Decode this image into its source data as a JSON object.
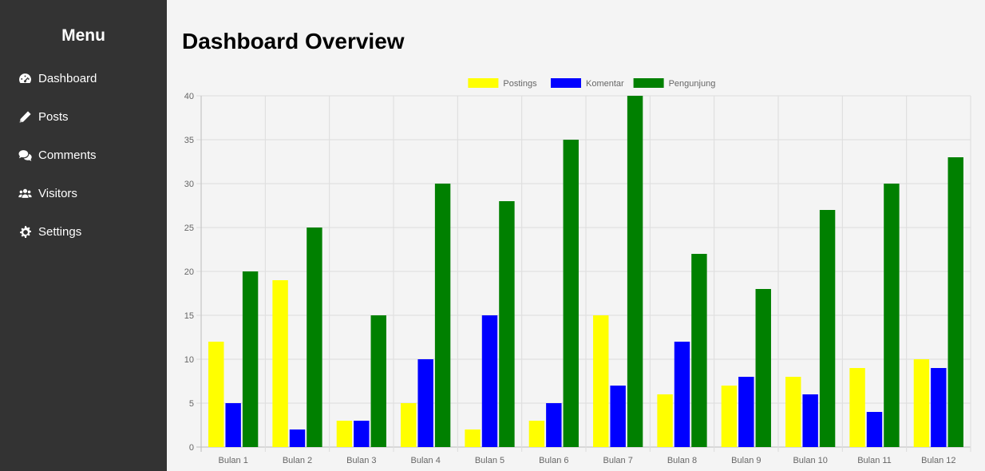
{
  "sidebar": {
    "title": "Menu",
    "items": [
      {
        "label": "Dashboard",
        "icon": "gauge-icon"
      },
      {
        "label": "Posts",
        "icon": "pencil-icon"
      },
      {
        "label": "Comments",
        "icon": "comments-icon"
      },
      {
        "label": "Visitors",
        "icon": "users-icon"
      },
      {
        "label": "Settings",
        "icon": "gear-icon"
      }
    ]
  },
  "main": {
    "title": "Dashboard Overview"
  },
  "chart_data": {
    "type": "bar",
    "categories": [
      "Bulan 1",
      "Bulan 2",
      "Bulan 3",
      "Bulan 4",
      "Bulan 5",
      "Bulan 6",
      "Bulan 7",
      "Bulan 8",
      "Bulan 9",
      "Bulan 10",
      "Bulan 11",
      "Bulan 12"
    ],
    "series": [
      {
        "name": "Postings",
        "color": "#ffff00",
        "values": [
          12,
          19,
          3,
          5,
          2,
          3,
          15,
          6,
          7,
          8,
          9,
          10
        ]
      },
      {
        "name": "Komentar",
        "color": "#0000ff",
        "values": [
          5,
          2,
          3,
          10,
          15,
          5,
          7,
          12,
          8,
          6,
          4,
          9
        ]
      },
      {
        "name": "Pengunjung",
        "color": "#008000",
        "values": [
          20,
          25,
          15,
          30,
          28,
          35,
          40,
          22,
          18,
          27,
          30,
          33
        ]
      }
    ],
    "ylim": [
      0,
      40
    ],
    "yticks": [
      0,
      5,
      10,
      15,
      20,
      25,
      30,
      35,
      40
    ],
    "grid": true,
    "legend": "top-center",
    "title": "",
    "xlabel": "",
    "ylabel": ""
  }
}
